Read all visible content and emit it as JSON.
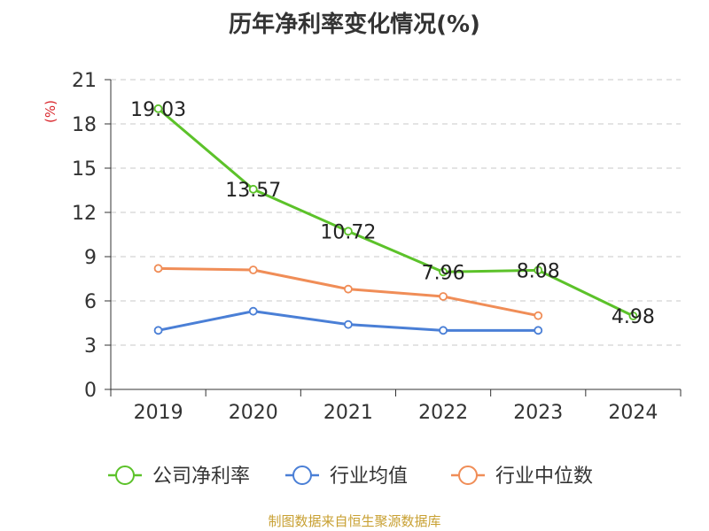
{
  "chart_data": {
    "type": "line",
    "title": "历年净利率变化情况(%)",
    "ylabel": "(%)",
    "xlabel": "",
    "categories": [
      "2019",
      "2020",
      "2021",
      "2022",
      "2023",
      "2024"
    ],
    "ylim": [
      0,
      21
    ],
    "yticks": [
      "0",
      "3",
      "6",
      "9",
      "12",
      "15",
      "18",
      "21"
    ],
    "grid": true,
    "legend_position": "bottom",
    "series": [
      {
        "name": "公司净利率",
        "color": "#5cc22a",
        "values": [
          19.03,
          13.57,
          10.72,
          7.96,
          8.08,
          4.98
        ],
        "labels": [
          "19.03",
          "13.57",
          "10.72",
          "7.96",
          "8.08",
          "4.98"
        ]
      },
      {
        "name": "行业均值",
        "color": "#4a7fd6",
        "values": [
          4.0,
          5.3,
          4.4,
          4.0,
          4.0,
          null
        ]
      },
      {
        "name": "行业中位数",
        "color": "#f08d57",
        "values": [
          8.2,
          8.1,
          6.8,
          6.3,
          5.0,
          null
        ]
      }
    ],
    "source": "制图数据来自恒生聚源数据库"
  }
}
